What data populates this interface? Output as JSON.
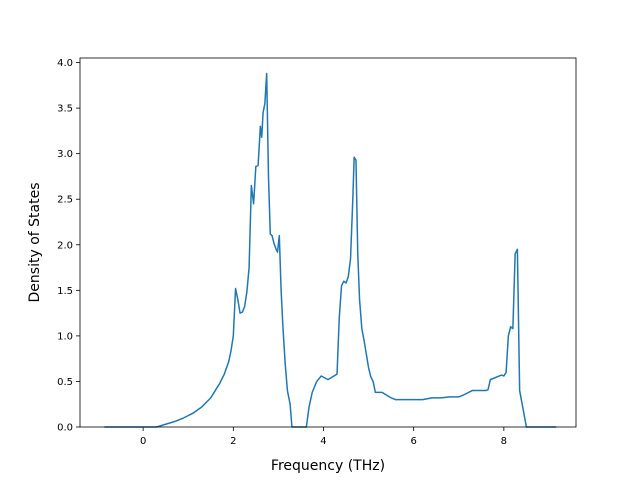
{
  "chart_data": {
    "type": "line",
    "title": "",
    "xlabel": "Frequency (THz)",
    "ylabel": "Density of States",
    "xlim": [
      -1.4,
      9.6
    ],
    "ylim": [
      0.0,
      4.05
    ],
    "xticks": [
      0,
      2,
      4,
      6,
      8
    ],
    "xtick_labels": [
      "0",
      "2",
      "4",
      "6",
      "8"
    ],
    "yticks": [
      0.0,
      0.5,
      1.0,
      1.5,
      2.0,
      2.5,
      3.0,
      3.5,
      4.0
    ],
    "ytick_labels": [
      "0.0",
      "0.5",
      "1.0",
      "1.5",
      "2.0",
      "2.5",
      "3.0",
      "3.5",
      "4.0"
    ],
    "grid": false,
    "series": [
      {
        "color": "#1f77b4",
        "x": [
          -0.85,
          -0.4,
          0.0,
          0.3,
          0.5,
          0.7,
          0.9,
          1.1,
          1.3,
          1.5,
          1.6,
          1.7,
          1.8,
          1.9,
          1.95,
          2.0,
          2.05,
          2.1,
          2.15,
          2.2,
          2.25,
          2.3,
          2.35,
          2.4,
          2.45,
          2.5,
          2.55,
          2.6,
          2.63,
          2.66,
          2.7,
          2.74,
          2.78,
          2.82,
          2.86,
          2.9,
          2.95,
          2.98,
          3.02,
          3.06,
          3.1,
          3.15,
          3.2,
          3.22,
          3.26,
          3.3,
          3.35,
          3.5,
          3.62,
          3.68,
          3.75,
          3.85,
          3.95,
          4.1,
          4.2,
          4.3,
          4.35,
          4.4,
          4.45,
          4.5,
          4.55,
          4.6,
          4.65,
          4.68,
          4.72,
          4.76,
          4.8,
          4.85,
          4.9,
          5.0,
          5.05,
          5.1,
          5.15,
          5.2,
          5.3,
          5.5,
          5.6,
          5.8,
          6.0,
          6.2,
          6.4,
          6.6,
          6.8,
          7.0,
          7.1,
          7.3,
          7.5,
          7.6,
          7.65,
          7.7,
          7.9,
          7.95,
          8.0,
          8.05,
          8.1,
          8.15,
          8.2,
          8.25,
          8.3,
          8.35,
          8.5,
          8.8,
          9.15
        ],
        "y": [
          0.0,
          0.0,
          0.0,
          0.0,
          0.03,
          0.06,
          0.1,
          0.15,
          0.22,
          0.32,
          0.4,
          0.48,
          0.58,
          0.72,
          0.84,
          1.0,
          1.52,
          1.4,
          1.25,
          1.26,
          1.32,
          1.48,
          1.75,
          2.65,
          2.45,
          2.86,
          2.87,
          3.3,
          3.18,
          3.45,
          3.55,
          3.88,
          2.75,
          2.12,
          2.1,
          2.02,
          1.95,
          1.92,
          2.1,
          1.5,
          1.1,
          0.7,
          0.4,
          0.35,
          0.25,
          0.0,
          0.0,
          0.0,
          0.0,
          0.22,
          0.38,
          0.5,
          0.56,
          0.52,
          0.55,
          0.58,
          1.2,
          1.55,
          1.6,
          1.58,
          1.65,
          1.85,
          2.5,
          2.96,
          2.93,
          1.9,
          1.4,
          1.08,
          0.95,
          0.65,
          0.55,
          0.5,
          0.38,
          0.38,
          0.38,
          0.32,
          0.3,
          0.3,
          0.3,
          0.3,
          0.32,
          0.32,
          0.33,
          0.33,
          0.35,
          0.4,
          0.4,
          0.4,
          0.41,
          0.52,
          0.56,
          0.57,
          0.56,
          0.6,
          1.0,
          1.1,
          1.08,
          1.9,
          1.95,
          0.4,
          0.0,
          0.0,
          0.0
        ]
      }
    ]
  }
}
